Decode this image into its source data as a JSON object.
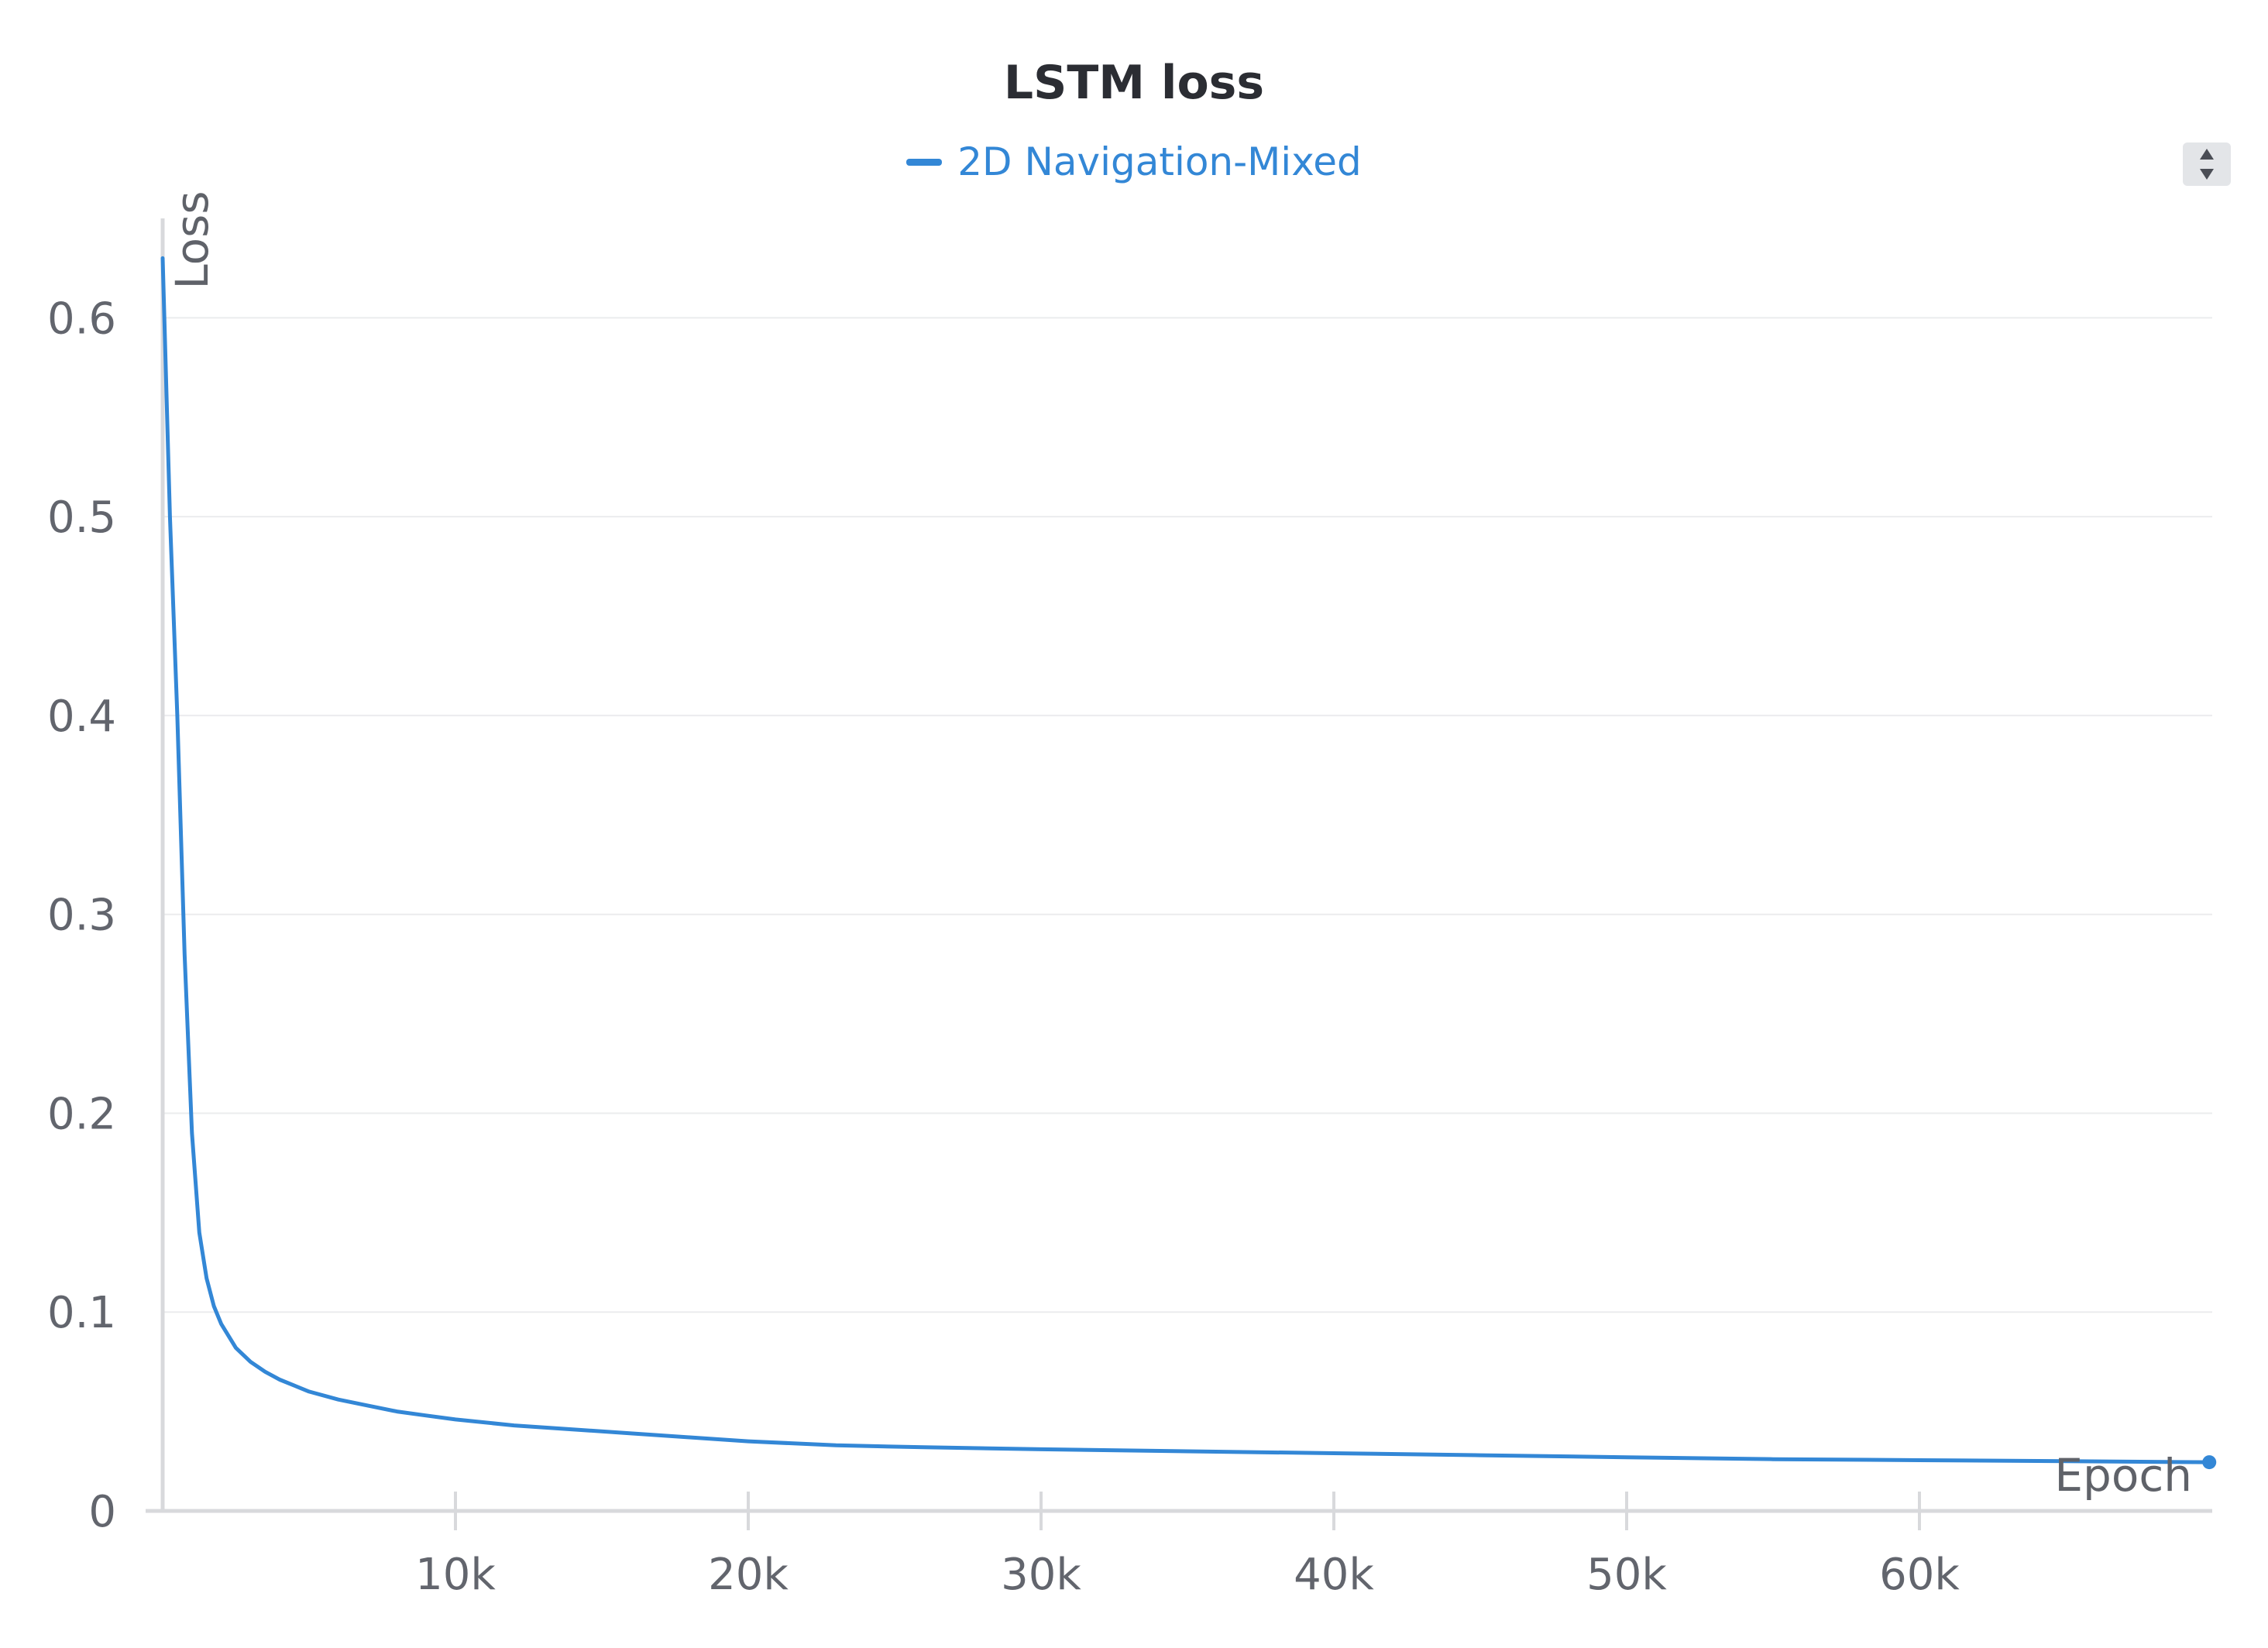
{
  "chart_data": {
    "type": "line",
    "title": "LSTM loss",
    "xlabel": "Epoch",
    "ylabel": "Loss",
    "xlim": [
      0,
      70000
    ],
    "ylim": [
      0,
      0.65
    ],
    "grid": true,
    "legend_placement": "top-center",
    "x_ticks": [
      {
        "value": 10000,
        "label": "10k"
      },
      {
        "value": 20000,
        "label": "20k"
      },
      {
        "value": 30000,
        "label": "30k"
      },
      {
        "value": 40000,
        "label": "40k"
      },
      {
        "value": 50000,
        "label": "50k"
      },
      {
        "value": 60000,
        "label": "60k"
      }
    ],
    "y_ticks": [
      {
        "value": 0,
        "label": "0"
      },
      {
        "value": 0.1,
        "label": "0.1"
      },
      {
        "value": 0.2,
        "label": "0.2"
      },
      {
        "value": 0.3,
        "label": "0.3"
      },
      {
        "value": 0.4,
        "label": "0.4"
      },
      {
        "value": 0.5,
        "label": "0.5"
      },
      {
        "value": 0.6,
        "label": "0.6"
      }
    ],
    "series": [
      {
        "name": "2D Navigation-Mixed",
        "color": "#3387d6",
        "x": [
          0,
          250,
          500,
          750,
          1000,
          1250,
          1500,
          1750,
          2000,
          2500,
          3000,
          3500,
          4000,
          5000,
          6000,
          7000,
          8000,
          9000,
          10000,
          12000,
          14000,
          16000,
          18000,
          20000,
          23000,
          26000,
          30000,
          35000,
          40000,
          45000,
          50000,
          55000,
          60000,
          65000,
          69900
        ],
        "y": [
          0.63,
          0.5,
          0.4,
          0.28,
          0.19,
          0.14,
          0.117,
          0.103,
          0.094,
          0.082,
          0.075,
          0.07,
          0.066,
          0.06,
          0.056,
          0.053,
          0.05,
          0.048,
          0.046,
          0.043,
          0.041,
          0.039,
          0.037,
          0.035,
          0.033,
          0.032,
          0.031,
          0.03,
          0.029,
          0.028,
          0.027,
          0.026,
          0.0255,
          0.025,
          0.0245
        ]
      }
    ]
  }
}
